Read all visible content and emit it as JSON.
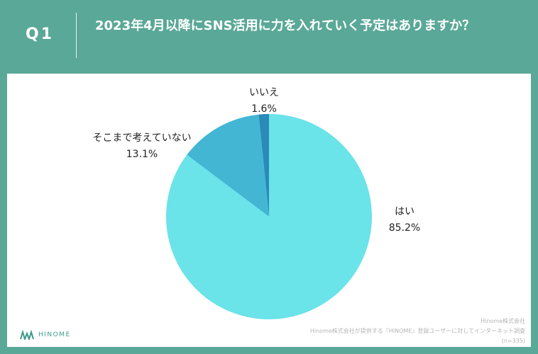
{
  "header": {
    "q_label": "Q1",
    "question": "2023年4月以降にSNS活用に力を入れていく予定はありますか？"
  },
  "chart_data": {
    "type": "pie",
    "title": "2023年4月以降にSNS活用に力を入れていく予定はありますか？",
    "start": "12 o'clock",
    "direction": "clockwise",
    "slices": [
      {
        "label": "はい",
        "pct_text": "85.2%",
        "value": 85.2,
        "color": "#6ae3e9"
      },
      {
        "label": "そこまで考えていない",
        "pct_text": "13.1%",
        "value": 13.1,
        "color": "#43b6d4"
      },
      {
        "label": "いいえ",
        "pct_text": "1.6%",
        "value": 1.6,
        "color": "#2a8ab8"
      }
    ]
  },
  "logo": {
    "text": "HINOME"
  },
  "footer": {
    "line1": "Hinome株式会社",
    "line2": "Hinome株式会社が提供する『HINOME』登録ユーザーに対してインターネット調査",
    "line3": "(n=335)"
  }
}
